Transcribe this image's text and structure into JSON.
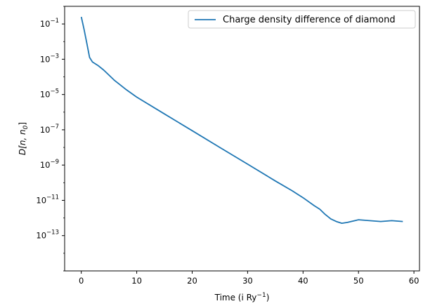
{
  "chart_data": {
    "type": "line",
    "title": "",
    "xlabel": "Time (i Ry",
    "xlabel_sup": "−1",
    "xlabel_tail": ")",
    "ylabel": "D[n, n",
    "ylabel_sub": "0",
    "ylabel_tail": "]",
    "x_scale": "linear",
    "y_scale": "log",
    "xlim": [
      -3,
      61
    ],
    "ylim_log10": [
      -15,
      0
    ],
    "x_ticks": [
      0,
      10,
      20,
      30,
      40,
      50,
      60
    ],
    "x_tick_labels": [
      "0",
      "10",
      "20",
      "30",
      "40",
      "50",
      "60"
    ],
    "y_ticks_log10": [
      -1,
      -3,
      -5,
      -7,
      -9,
      -11,
      -13
    ],
    "y_tick_labels": [
      {
        "base": "10",
        "exp": "−1"
      },
      {
        "base": "10",
        "exp": "−3"
      },
      {
        "base": "10",
        "exp": "−5"
      },
      {
        "base": "10",
        "exp": "−7"
      },
      {
        "base": "10",
        "exp": "−9"
      },
      {
        "base": "10",
        "exp": "−11"
      },
      {
        "base": "10",
        "exp": "−13"
      }
    ],
    "grid": false,
    "legend_position": "top-right",
    "series": [
      {
        "name": "Charge density difference of diamond",
        "color": "#1f77b4",
        "x": [
          0,
          0.5,
          1.0,
          1.5,
          2.0,
          3.0,
          4.0,
          5.0,
          6.0,
          8.0,
          10.0,
          15.0,
          20.0,
          25.0,
          30.0,
          35.0,
          38.0,
          40.0,
          42.0,
          43.0,
          44.0,
          45.0,
          46.0,
          47.0,
          48.0,
          50.0,
          52.0,
          54.0,
          56.0,
          58.0
        ],
        "log10_y": [
          -0.6,
          -1.3,
          -2.1,
          -2.9,
          -3.15,
          -3.35,
          -3.6,
          -3.9,
          -4.2,
          -4.7,
          -5.15,
          -6.1,
          -7.05,
          -8.0,
          -8.95,
          -9.9,
          -10.45,
          -10.85,
          -11.3,
          -11.5,
          -11.8,
          -12.05,
          -12.2,
          -12.3,
          -12.25,
          -12.1,
          -12.15,
          -12.2,
          -12.15,
          -12.2
        ]
      }
    ]
  }
}
